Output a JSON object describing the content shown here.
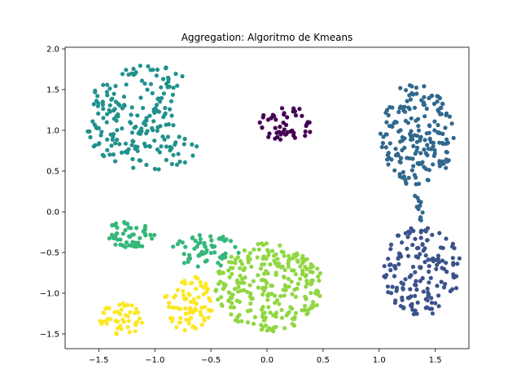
{
  "chart_data": {
    "type": "scatter",
    "title": "Aggregation: Algoritmo de Kmeans",
    "xlabel": "",
    "ylabel": "",
    "xlim": [
      -1.8,
      1.8
    ],
    "ylim": [
      -1.68,
      2.02
    ],
    "xticks": [
      -1.5,
      -1.0,
      -0.5,
      0.0,
      0.5,
      1.0,
      1.5
    ],
    "yticks": [
      -1.5,
      -1.0,
      -0.5,
      0.0,
      0.5,
      1.0,
      1.5,
      2.0
    ],
    "xtick_labels": [
      "−1.5",
      "−1.0",
      "−0.5",
      "0.0",
      "0.5",
      "1.0",
      "1.5"
    ],
    "ytick_labels": [
      "−1.5",
      "−1.0",
      "−0.5",
      "0.0",
      "0.5",
      "1.0",
      "1.5",
      "2.0"
    ],
    "grid": false,
    "legend": "none",
    "clusters": [
      {
        "color": "#440154",
        "shape": "ellipse",
        "center": [
          0.18,
          1.08
        ],
        "radius": [
          0.25,
          0.22
        ],
        "count": 50
      },
      {
        "color": "#3b528b",
        "shape": "ellipse",
        "center": [
          1.38,
          -0.72
        ],
        "radius": [
          0.35,
          0.55
        ],
        "count": 160
      },
      {
        "color": "#31688e",
        "shape": "ellipse",
        "center": [
          1.34,
          0.95
        ],
        "radius": [
          0.33,
          0.65
        ],
        "count": 190
      },
      {
        "color": "#31688e",
        "shape": "line",
        "from": [
          1.34,
          0.22
        ],
        "to": [
          1.38,
          -0.12
        ],
        "count": 12
      },
      {
        "color": "#21918c",
        "shape": "crescent",
        "center": [
          -1.05,
          1.15
        ],
        "radius": [
          0.6,
          0.65
        ],
        "count": 210
      },
      {
        "color": "#35b779",
        "shape": "ellipse",
        "center": [
          -1.22,
          -0.28
        ],
        "radius": [
          0.24,
          0.17
        ],
        "count": 55
      },
      {
        "color": "#35b779",
        "shape": "ellipse",
        "center": [
          -0.55,
          -0.48
        ],
        "radius": [
          0.32,
          0.2
        ],
        "count": 60
      },
      {
        "color": "#90d743",
        "shape": "ellipse",
        "center": [
          0.02,
          -0.92
        ],
        "radius": [
          0.48,
          0.55
        ],
        "count": 270
      },
      {
        "color": "#fde725",
        "shape": "ellipse",
        "center": [
          -0.7,
          -1.12
        ],
        "radius": [
          0.22,
          0.34
        ],
        "count": 75
      },
      {
        "color": "#fde725",
        "shape": "ellipse",
        "center": [
          -1.3,
          -1.32
        ],
        "radius": [
          0.19,
          0.2
        ],
        "count": 45
      }
    ]
  }
}
